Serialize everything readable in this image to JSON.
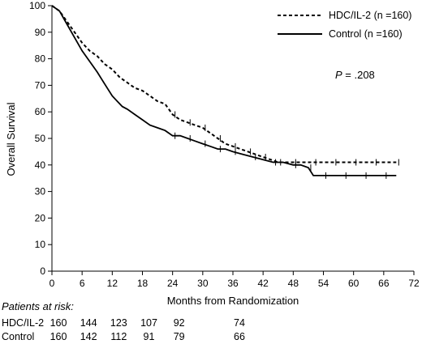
{
  "chart_data": {
    "type": "line",
    "ylabel": "Overall Survival",
    "xlabel": "Months from Randomization",
    "xlim": [
      0,
      72
    ],
    "ylim": [
      0,
      100
    ],
    "xticks": [
      0,
      6,
      12,
      18,
      24,
      30,
      36,
      42,
      48,
      54,
      60,
      66,
      72
    ],
    "yticks": [
      0,
      10,
      20,
      30,
      40,
      50,
      60,
      70,
      80,
      90,
      100
    ],
    "legend_position": "top-right",
    "annotation": {
      "label": "P",
      "text": " = .208"
    },
    "series": [
      {
        "name": "HDC/IL-2 (n =160)",
        "style": "dashed",
        "x": [
          0,
          1.5,
          3,
          4.5,
          6,
          7.5,
          9,
          10.5,
          12,
          13.5,
          15,
          16.5,
          18,
          19.5,
          21,
          22.5,
          24,
          25.5,
          27,
          28.5,
          30,
          31.5,
          33,
          34.5,
          36,
          37.5,
          39,
          40.5,
          42,
          43.5,
          45,
          46.5,
          48,
          50,
          52,
          54,
          56,
          58,
          60,
          62,
          64,
          66,
          68.5
        ],
        "y": [
          100,
          98,
          94,
          90,
          86,
          83,
          81,
          78,
          76,
          73,
          71,
          69,
          68,
          66,
          64,
          63,
          59,
          57,
          56,
          55,
          54,
          52,
          50,
          48,
          47,
          46,
          45,
          44,
          43,
          42,
          41,
          41,
          41,
          41,
          41,
          41,
          41,
          41,
          41,
          41,
          41,
          41,
          41
        ]
      },
      {
        "name": "Control (n =160)",
        "style": "solid",
        "x": [
          0,
          1.5,
          3,
          4.5,
          6,
          7.5,
          9,
          10,
          11,
          12,
          13,
          14,
          15,
          16.5,
          18,
          19.5,
          21,
          22.5,
          24,
          25.5,
          27,
          28.5,
          30,
          31.5,
          33,
          34.5,
          36,
          38,
          40,
          42,
          44,
          46,
          48,
          49.5,
          51,
          52,
          54,
          56,
          58,
          60,
          62,
          64,
          66,
          68.5
        ],
        "y": [
          100,
          98,
          93,
          88,
          83,
          79,
          75,
          72,
          69,
          66,
          64,
          62,
          61,
          59,
          57,
          55,
          54,
          53,
          51,
          51,
          50,
          49,
          48,
          47,
          46,
          46,
          45,
          44,
          43,
          42,
          41,
          41,
          40,
          40,
          39,
          36,
          36,
          36,
          36,
          36,
          36,
          36,
          36,
          36
        ]
      }
    ],
    "risk_table": {
      "title": "Patients at risk:",
      "times": [
        0,
        6,
        12,
        18,
        24,
        36
      ],
      "rows": [
        {
          "name": "HDC/IL-2",
          "values": [
            "160",
            "144",
            "123",
            "107",
            "92",
            "74"
          ]
        },
        {
          "name": "Control",
          "values": [
            "160",
            "142",
            "112",
            "91",
            "79",
            "66"
          ]
        }
      ]
    }
  }
}
